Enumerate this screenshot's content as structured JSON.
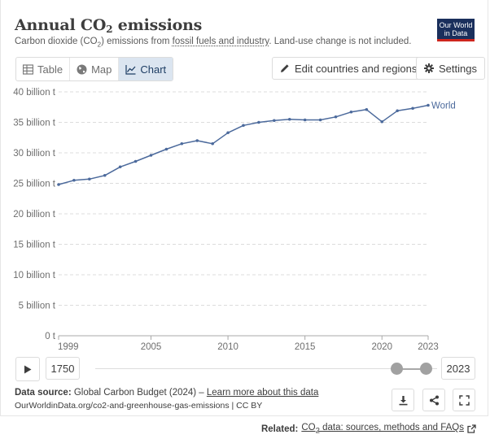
{
  "header": {
    "title_main": "Annual CO",
    "title_sub": "2",
    "title_end": " emissions",
    "subtitle_start": "Carbon dioxide (CO",
    "subtitle_sub": "2",
    "subtitle_mid": ") emissions from ",
    "subtitle_link": "fossil fuels and industry",
    "subtitle_end": ". Land-use change is not included."
  },
  "logo": {
    "line1": "Our World",
    "line2": "in Data"
  },
  "tabs": [
    {
      "label": "Table",
      "icon": "table-icon"
    },
    {
      "label": "Map",
      "icon": "globe-icon"
    },
    {
      "label": "Chart",
      "icon": "line-chart-icon"
    }
  ],
  "toolbar": {
    "edit_label": "Edit countries and regions",
    "settings_label": "Settings"
  },
  "timeline": {
    "start_year": "1750",
    "end_year": "2023",
    "range_start": "1999",
    "range_end": "2023"
  },
  "footer": {
    "source_label": "Data source:",
    "source_text": " Global Carbon Budget (2024) – ",
    "learn_more": "Learn more about this data",
    "url": "OurWorldinData.org/co2-and-greenhouse-gas-emissions | CC BY",
    "related_label": "Related:",
    "related_link_start": "CO",
    "related_link_sub": "2",
    "related_link_end": " data: sources, methods and FAQs"
  },
  "colors": {
    "series": "#4c6a9c",
    "accent_bg": "#dbe5f0",
    "logo_bg": "#1a2f5c",
    "logo_red": "#ce261e"
  },
  "chart_data": {
    "type": "line",
    "title": "Annual CO₂ emissions",
    "xlabel": "",
    "ylabel": "",
    "xlim": [
      1999,
      2023
    ],
    "ylim": [
      0,
      40
    ],
    "yticks": [
      0,
      5,
      10,
      15,
      20,
      25,
      30,
      35,
      40
    ],
    "ytick_labels": [
      "0 t",
      "5 billion t",
      "10 billion t",
      "15 billion t",
      "20 billion t",
      "25 billion t",
      "30 billion t",
      "35 billion t",
      "40 billion t"
    ],
    "xticks": [
      1999,
      2005,
      2010,
      2015,
      2020,
      2023
    ],
    "xtick_labels": [
      "1999",
      "2005",
      "2010",
      "2015",
      "2020",
      "2023"
    ],
    "grid": true,
    "series": [
      {
        "name": "World",
        "x": [
          1999,
          2000,
          2001,
          2002,
          2003,
          2004,
          2005,
          2006,
          2007,
          2008,
          2009,
          2010,
          2011,
          2012,
          2013,
          2014,
          2015,
          2016,
          2017,
          2018,
          2019,
          2020,
          2021,
          2022,
          2023
        ],
        "values": [
          24.8,
          25.5,
          25.7,
          26.3,
          27.7,
          28.6,
          29.6,
          30.6,
          31.5,
          32.0,
          31.5,
          33.3,
          34.5,
          35.0,
          35.3,
          35.5,
          35.4,
          35.4,
          35.9,
          36.7,
          37.1,
          35.1,
          36.9,
          37.3,
          37.8
        ]
      }
    ]
  }
}
